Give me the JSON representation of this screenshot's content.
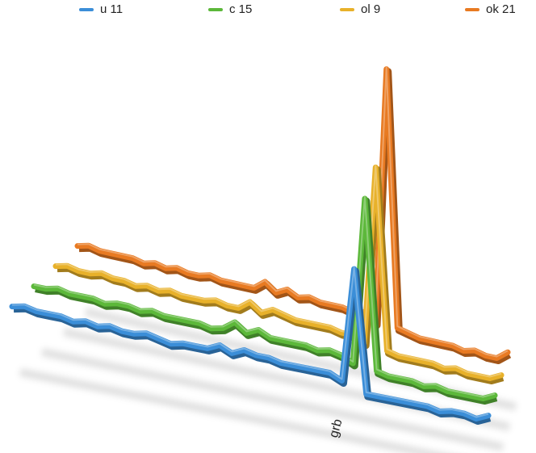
{
  "chart_data": {
    "type": "line3d",
    "categories": [
      null,
      null,
      null,
      null,
      null,
      null,
      null,
      null,
      null,
      null,
      null,
      null,
      null,
      null,
      null,
      null,
      null,
      null,
      null,
      null,
      null,
      null,
      null,
      null,
      null,
      null,
      null,
      null,
      "grb",
      null,
      null,
      null,
      null,
      null,
      null,
      null,
      null,
      null,
      null,
      null
    ],
    "series": [
      {
        "name": "u 11",
        "color": "#3b8ed8",
        "values": [
          12,
          13,
          12,
          12,
          12,
          11,
          12,
          11,
          12,
          11,
          11,
          12,
          11,
          10,
          11,
          11,
          11,
          13,
          11,
          13,
          12,
          12,
          11,
          11,
          11,
          11,
          11,
          9,
          50,
          6,
          6,
          6,
          6,
          6,
          6,
          5,
          6,
          6,
          5,
          7
        ]
      },
      {
        "name": "c 15",
        "color": "#5cb83a",
        "values": [
          12,
          12,
          13,
          12,
          12,
          12,
          11,
          12,
          12,
          11,
          12,
          11,
          11,
          11,
          11,
          10,
          11,
          14,
          11,
          13,
          11,
          11,
          11,
          11,
          10,
          11,
          10,
          8,
          68,
          7,
          6,
          6,
          6,
          5,
          6,
          5,
          5,
          5,
          5,
          7
        ]
      },
      {
        "name": "ol 9",
        "color": "#e8b12a",
        "values": [
          12,
          13,
          12,
          12,
          13,
          12,
          12,
          11,
          12,
          11,
          12,
          11,
          11,
          11,
          12,
          11,
          11,
          14,
          11,
          13,
          12,
          11,
          11,
          11,
          11,
          10,
          10,
          8,
          72,
          7,
          6,
          6,
          6,
          6,
          5,
          6,
          5,
          5,
          5,
          7
        ]
      },
      {
        "name": "ok 21",
        "color": "#e87a22",
        "values": [
          12,
          13,
          12,
          12,
          12,
          12,
          11,
          12,
          11,
          12,
          11,
          11,
          12,
          11,
          11,
          11,
          11,
          14,
          11,
          13,
          11,
          12,
          11,
          11,
          11,
          10,
          11,
          8,
          100,
          8,
          7,
          6,
          6,
          6,
          6,
          5,
          6,
          5,
          5,
          8
        ]
      }
    ],
    "legend": "top"
  }
}
